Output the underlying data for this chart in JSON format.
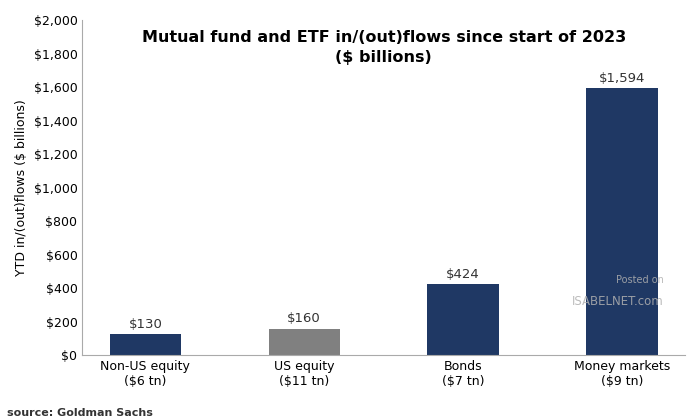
{
  "categories": [
    "Non-US equity\n($6 tn)",
    "US equity\n($11 tn)",
    "Bonds\n($7 tn)",
    "Money markets\n($9 tn)"
  ],
  "values": [
    130,
    160,
    424,
    1594
  ],
  "bar_colors": [
    "#1f3864",
    "#808080",
    "#1f3864",
    "#1f3864"
  ],
  "bar_labels": [
    "$130",
    "$160",
    "$424",
    "$1,594"
  ],
  "title_line1": "Mutual fund and ETF in/(out)flows since start of 2023",
  "title_line2": "($ billions)",
  "ylabel": "YTD in/(out)flows ($ billions)",
  "source": "source: Goldman Sachs",
  "ylim": [
    0,
    2000
  ],
  "yticks": [
    0,
    200,
    400,
    600,
    800,
    1000,
    1200,
    1400,
    1600,
    1800,
    2000
  ],
  "ytick_labels": [
    "$0",
    "$200",
    "$400",
    "$600",
    "$800",
    "$1,000",
    "$1,200",
    "$1,400",
    "$1,600",
    "$1,800",
    "$2,000"
  ],
  "background_color": "#ffffff",
  "plot_bg_color": "#ffffff",
  "watermark_text1": "Posted on",
  "watermark_text2": "ISABELNET.com",
  "title_fontsize": 11.5,
  "label_fontsize": 9.5,
  "tick_fontsize": 9,
  "ylabel_fontsize": 9,
  "source_fontsize": 8,
  "bar_width": 0.45
}
